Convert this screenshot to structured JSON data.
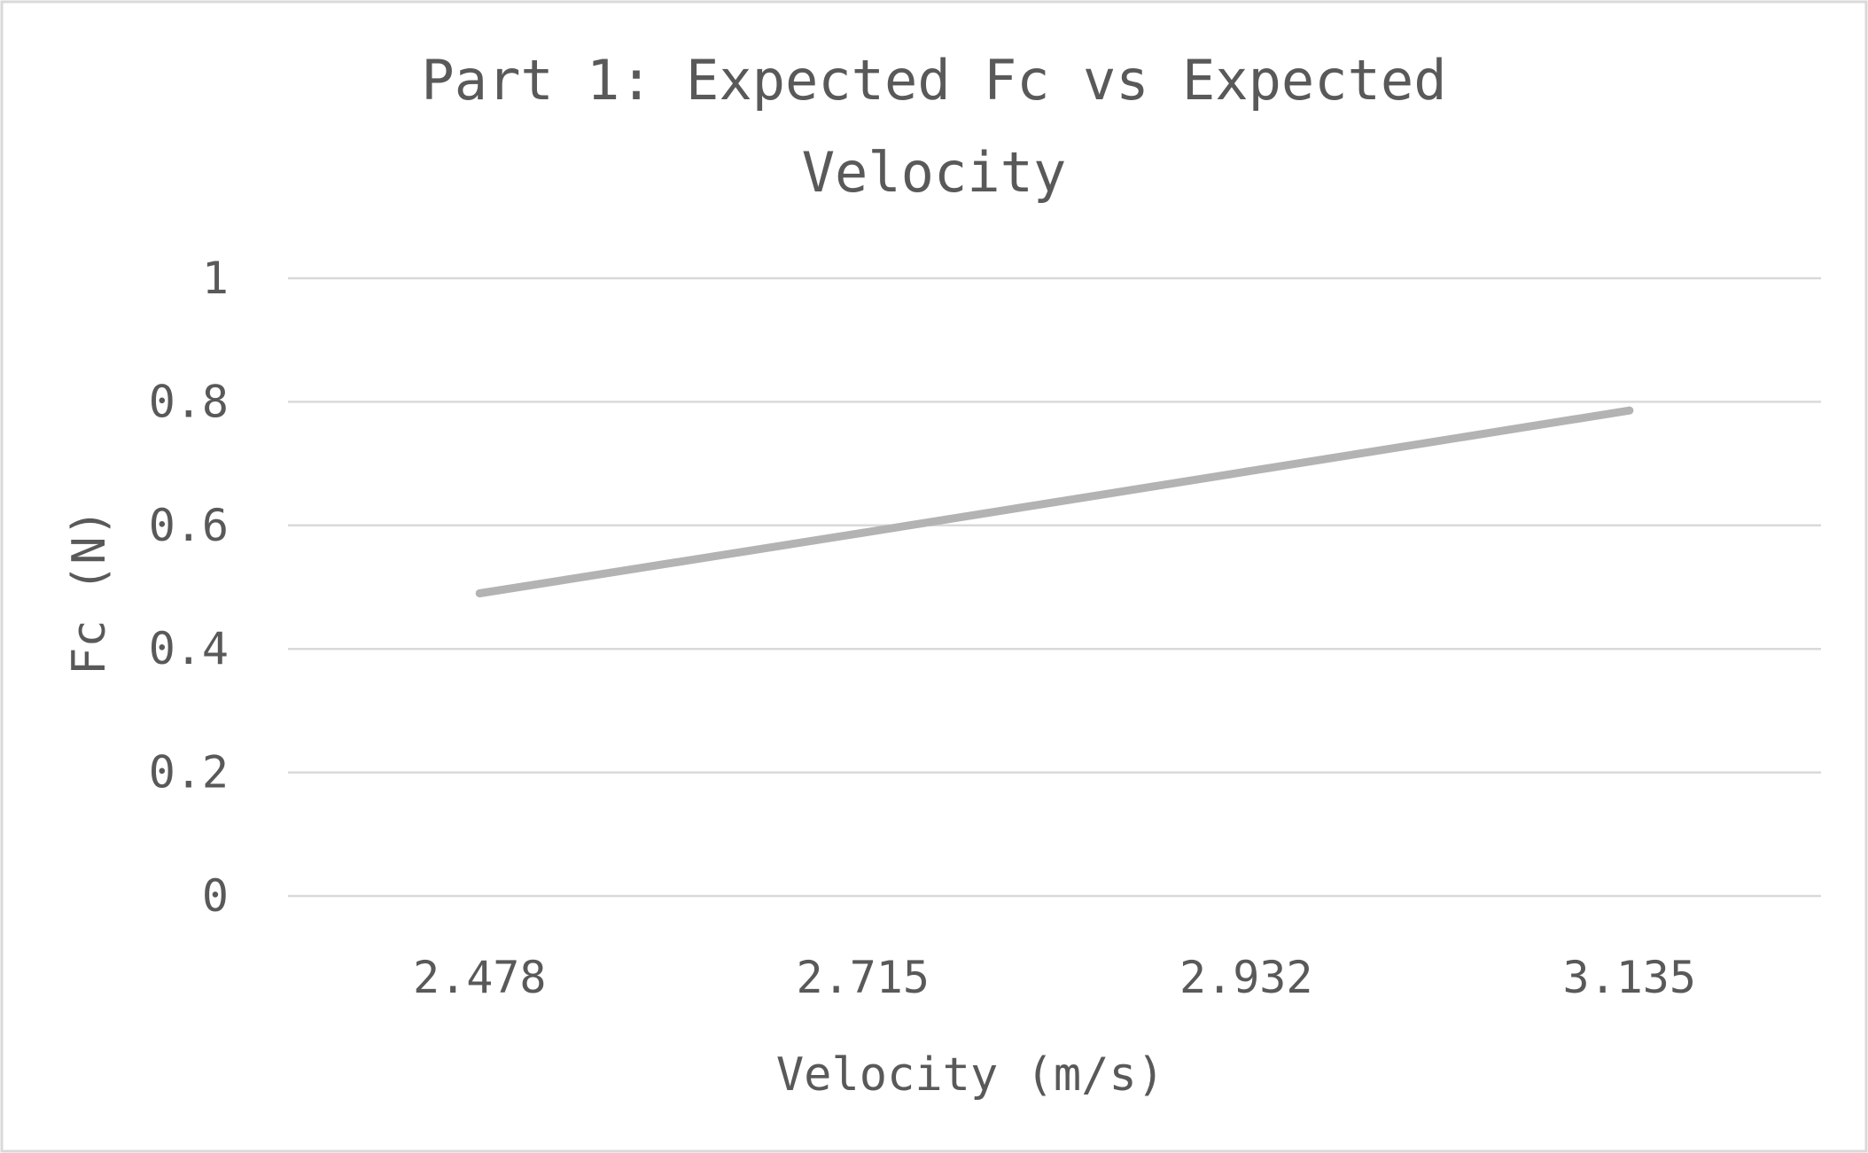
{
  "chart_data": {
    "type": "line",
    "title_lines": [
      "Part 1: Expected Fc vs Expected",
      "Velocity"
    ],
    "xlabel": "Velocity (m/s)",
    "ylabel": "Fc (N)",
    "categories": [
      "2.478",
      "2.715",
      "2.932",
      "3.135"
    ],
    "series": [
      {
        "values": [
          0.49,
          0.588,
          0.687,
          0.786
        ],
        "color": "#b3b3b3"
      }
    ],
    "ylim": [
      0,
      1
    ],
    "yticks": [
      0,
      0.2,
      0.4,
      0.6,
      0.8,
      1
    ],
    "ytick_labels": [
      "0",
      "0.2",
      "0.4",
      "0.6",
      "0.8",
      "1"
    ],
    "grid": true,
    "legend": "none",
    "colors": {
      "gridline": "#d9d9d9",
      "text": "#595959",
      "border": "#d9d9d9",
      "background": "#ffffff"
    }
  }
}
